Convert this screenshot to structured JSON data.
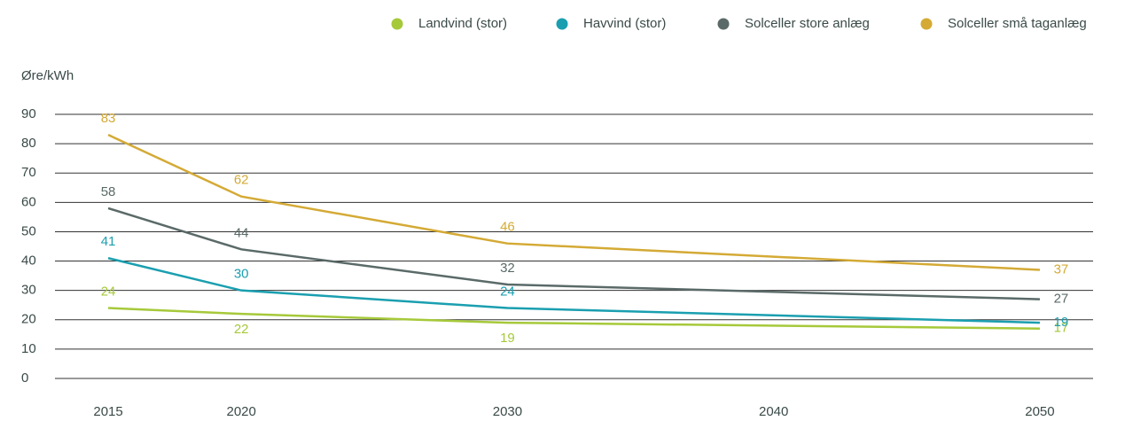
{
  "chart_data": {
    "type": "line",
    "y_label": "Øre/kWh",
    "x": [
      2015,
      2020,
      2030,
      2050
    ],
    "xlim": [
      2013,
      2052
    ],
    "xticks": [
      2015,
      2020,
      2030,
      2040,
      2050
    ],
    "ylim": [
      0,
      90
    ],
    "yticks": [
      0,
      10,
      20,
      30,
      40,
      50,
      60,
      70,
      80,
      90
    ],
    "grid": true,
    "legend": "top-right",
    "series": [
      {
        "name": "Landvind (stor)",
        "color": "#a6c93a",
        "values": [
          24,
          22,
          19,
          17
        ]
      },
      {
        "name": "Havvind (stor)",
        "color": "#1a9fb0",
        "values": [
          41,
          30,
          24,
          19
        ]
      },
      {
        "name": "Solceller store anlæg",
        "color": "#5a6a68",
        "values": [
          58,
          44,
          32,
          27
        ]
      },
      {
        "name": "Solceller små taganlæg",
        "color": "#d4aa35",
        "values": [
          83,
          62,
          46,
          37
        ]
      }
    ]
  }
}
